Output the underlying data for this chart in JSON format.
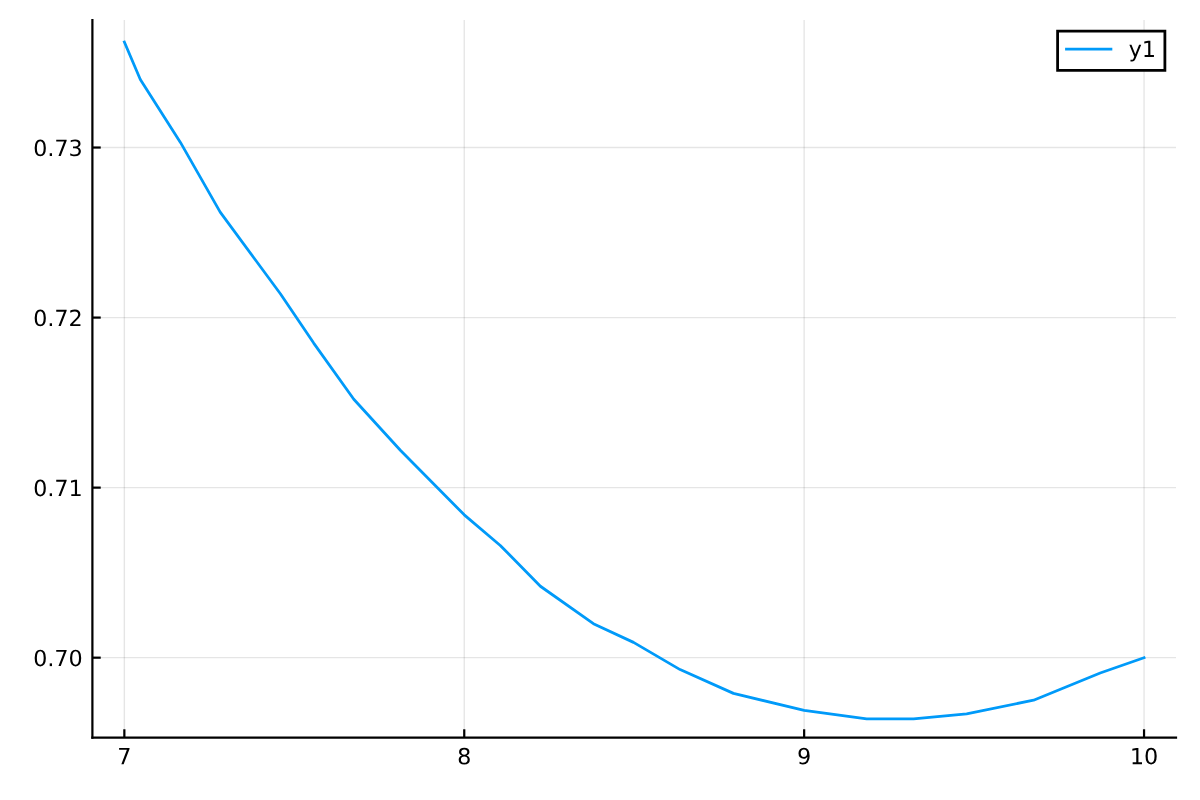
{
  "chart_data": {
    "type": "line",
    "series": [
      {
        "name": "y1",
        "color": "#009af9",
        "x": [
          7.0,
          7.047,
          7.165,
          7.282,
          7.459,
          7.557,
          7.675,
          7.812,
          8.0,
          8.106,
          8.224,
          8.38,
          8.498,
          8.635,
          8.792,
          9.0,
          9.184,
          9.322,
          9.478,
          9.675,
          9.871,
          10.0
        ],
        "values": [
          0.7362,
          0.734,
          0.7303,
          0.7262,
          0.7214,
          0.7185,
          0.7152,
          0.7122,
          0.7084,
          0.7066,
          0.7042,
          0.702,
          0.7009,
          0.6993,
          0.6979,
          0.6969,
          0.6964,
          0.6964,
          0.6967,
          0.6975,
          0.6991,
          0.7
        ]
      }
    ],
    "xlim": [
      6.906,
      10.094
    ],
    "ylim": [
      0.6953,
      0.7375
    ],
    "xticks": [
      7,
      8,
      9,
      10
    ],
    "yticks": [
      {
        "value": 0.7,
        "label": "0.70"
      },
      0.71,
      0.72,
      0.73
    ],
    "grid": true,
    "legend": "top right",
    "line_style": "solid",
    "marker": "none"
  }
}
